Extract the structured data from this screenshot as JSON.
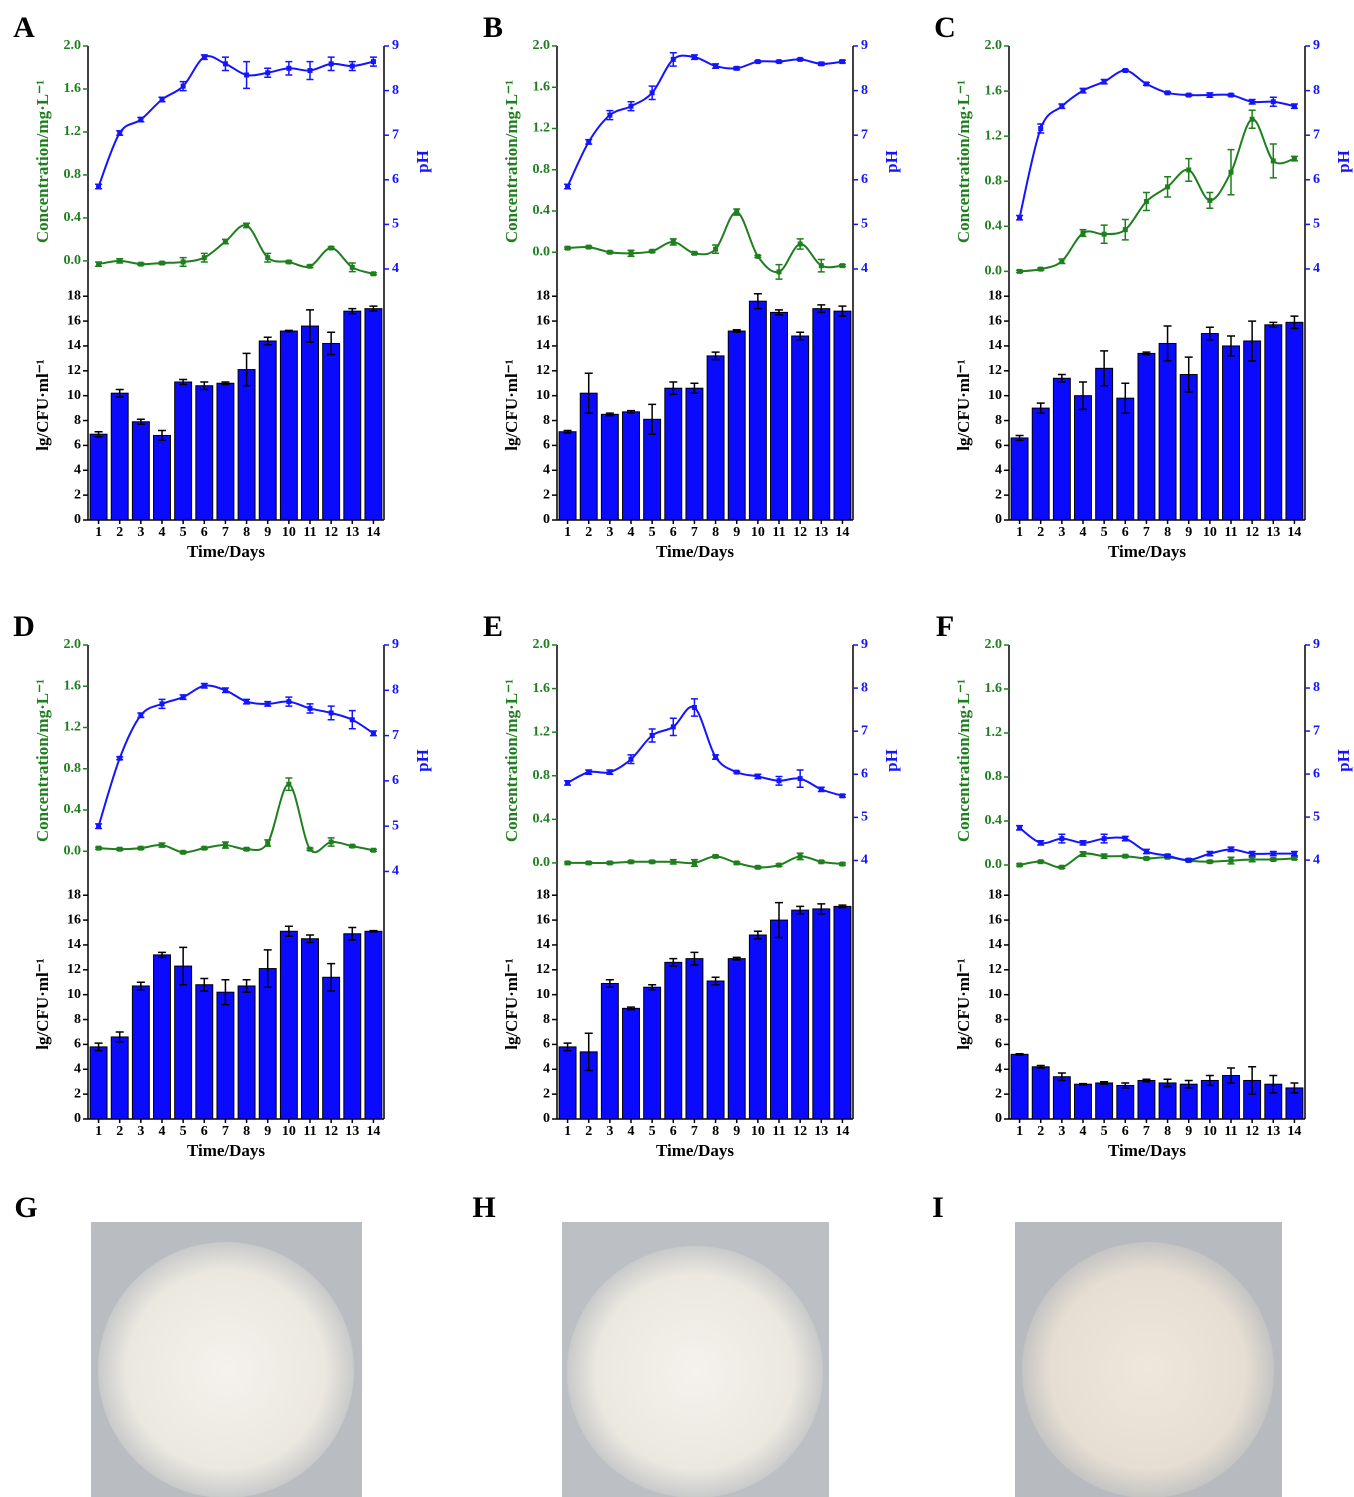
{
  "chart_data": [
    {
      "type": "combo",
      "label": "A",
      "xlabel": "Time/Days",
      "categories": [
        1,
        2,
        3,
        4,
        5,
        6,
        7,
        8,
        9,
        10,
        11,
        12,
        13,
        14
      ],
      "ylabel": "Concentration/mg·L⁻¹",
      "ylim": [
        -0.15,
        2.0
      ],
      "yticks": [
        {
          "value": 0,
          "label": "0.0"
        },
        {
          "value": 0.4,
          "label": "0.4"
        },
        {
          "value": 0.8,
          "label": "0.8"
        },
        {
          "value": 1.2,
          "label": "1.2"
        },
        {
          "value": 1.6,
          "label": "1.6"
        },
        {
          "value": 2,
          "label": "2.0"
        }
      ],
      "y2label": "pH",
      "y2lim": [
        3.82,
        9
      ],
      "y2ticks": [
        4,
        5,
        6,
        7,
        8,
        9
      ],
      "series": [
        {
          "color": "#1f7f1f",
          "values": [
            -0.03,
            0.0,
            -0.03,
            -0.02,
            -0.01,
            0.03,
            0.18,
            0.33,
            0.03,
            -0.01,
            -0.05,
            0.12,
            -0.06,
            -0.12
          ],
          "errors": [
            0.02,
            0.02,
            0.01,
            0.01,
            0.04,
            0.04,
            0.02,
            0.02,
            0.04,
            0.01,
            0.01,
            0.01,
            0.04,
            0.01
          ]
        },
        {
          "color": "#1414ff",
          "axis": "y2",
          "values": [
            5.85,
            7.05,
            7.35,
            7.8,
            8.1,
            8.75,
            8.6,
            8.35,
            8.4,
            8.5,
            8.45,
            8.6,
            8.55,
            8.65
          ],
          "errors": [
            0.05,
            0.05,
            0.05,
            0.05,
            0.1,
            0.05,
            0.15,
            0.3,
            0.1,
            0.15,
            0.2,
            0.15,
            0.1,
            0.1
          ]
        }
      ],
      "bars": {
        "ylabel": "lg/CFU·ml⁻¹",
        "ylim": [
          0,
          18.5
        ],
        "yticks": [
          0,
          2,
          4,
          6,
          8,
          10,
          12,
          14,
          16,
          18
        ],
        "color": "#0a0aff",
        "values": [
          6.9,
          10.2,
          7.9,
          6.8,
          11.1,
          10.8,
          11.0,
          12.1,
          14.4,
          15.2,
          15.6,
          14.2,
          16.8,
          17.0
        ],
        "errors": [
          0.2,
          0.3,
          0.2,
          0.4,
          0.2,
          0.3,
          0.1,
          1.3,
          0.3,
          0.05,
          1.3,
          0.9,
          0.2,
          0.2
        ]
      }
    },
    {
      "type": "combo",
      "label": "B",
      "xlabel": "Time/Days",
      "categories": [
        1,
        2,
        3,
        4,
        5,
        6,
        7,
        8,
        9,
        10,
        11,
        12,
        13,
        14
      ],
      "ylabel": "Concentration/mg·L⁻¹",
      "ylim": [
        -0.24,
        2.0
      ],
      "yticks": [
        {
          "value": 0,
          "label": "0.0"
        },
        {
          "value": 0.4,
          "label": "0.4"
        },
        {
          "value": 0.8,
          "label": "0.8"
        },
        {
          "value": 1.2,
          "label": "1.2"
        },
        {
          "value": 1.6,
          "label": "1.6"
        },
        {
          "value": 2,
          "label": "2.0"
        }
      ],
      "y2label": "pH",
      "y2lim": [
        3.82,
        9
      ],
      "y2ticks": [
        4,
        5,
        6,
        7,
        8,
        9
      ],
      "series": [
        {
          "color": "#1f7f1f",
          "values": [
            0.04,
            0.05,
            0.0,
            -0.01,
            0.01,
            0.1,
            -0.01,
            0.03,
            0.39,
            -0.04,
            -0.19,
            0.08,
            -0.13,
            -0.13
          ],
          "errors": [
            0.01,
            0.01,
            0.01,
            0.03,
            0.01,
            0.03,
            0.01,
            0.04,
            0.03,
            0.01,
            0.07,
            0.05,
            0.06,
            0.01
          ]
        },
        {
          "color": "#1414ff",
          "axis": "y2",
          "values": [
            5.85,
            6.85,
            7.45,
            7.65,
            7.95,
            8.7,
            8.75,
            8.55,
            8.5,
            8.65,
            8.65,
            8.7,
            8.6,
            8.65
          ],
          "errors": [
            0.05,
            0.05,
            0.1,
            0.1,
            0.15,
            0.15,
            0.05,
            0.05,
            0.03,
            0.02,
            0.02,
            0.02,
            0.03,
            0.03
          ]
        }
      ],
      "bars": {
        "ylabel": "lg/CFU·ml⁻¹",
        "ylim": [
          0,
          18.5
        ],
        "yticks": [
          0,
          2,
          4,
          6,
          8,
          10,
          12,
          14,
          16,
          18
        ],
        "color": "#0a0aff",
        "values": [
          7.1,
          10.2,
          8.5,
          8.7,
          8.1,
          10.6,
          10.6,
          13.2,
          15.2,
          17.6,
          16.7,
          14.8,
          17.0,
          16.8
        ],
        "errors": [
          0.1,
          1.6,
          0.1,
          0.1,
          1.2,
          0.5,
          0.4,
          0.3,
          0.1,
          0.6,
          0.2,
          0.3,
          0.3,
          0.4
        ]
      }
    },
    {
      "type": "combo",
      "label": "C",
      "xlabel": "Time/Days",
      "categories": [
        1,
        2,
        3,
        4,
        5,
        6,
        7,
        8,
        9,
        10,
        11,
        12,
        13,
        14
      ],
      "ylabel": "Concentration/mg·L⁻¹",
      "ylim": [
        -0.05,
        2.0
      ],
      "yticks": [
        {
          "value": 0,
          "label": "0.0"
        },
        {
          "value": 0.4,
          "label": "0.4"
        },
        {
          "value": 0.8,
          "label": "0.8"
        },
        {
          "value": 1.2,
          "label": "1.2"
        },
        {
          "value": 1.6,
          "label": "1.6"
        },
        {
          "value": 2,
          "label": "2.0"
        }
      ],
      "y2label": "pH",
      "y2lim": [
        3.82,
        9
      ],
      "y2ticks": [
        4,
        5,
        6,
        7,
        8,
        9
      ],
      "series": [
        {
          "color": "#1f7f1f",
          "values": [
            0.0,
            0.02,
            0.09,
            0.34,
            0.33,
            0.37,
            0.62,
            0.75,
            0.9,
            0.63,
            0.88,
            1.35,
            0.98,
            1.0
          ],
          "errors": [
            0.01,
            0.01,
            0.02,
            0.03,
            0.08,
            0.09,
            0.08,
            0.09,
            0.1,
            0.07,
            0.2,
            0.08,
            0.15,
            0.02
          ]
        },
        {
          "color": "#1414ff",
          "axis": "y2",
          "values": [
            5.15,
            7.15,
            7.65,
            8.0,
            8.2,
            8.45,
            8.15,
            7.95,
            7.9,
            7.9,
            7.9,
            7.75,
            7.75,
            7.65
          ],
          "errors": [
            0.05,
            0.1,
            0.05,
            0.05,
            0.05,
            0.02,
            0.03,
            0.02,
            0.02,
            0.05,
            0.02,
            0.05,
            0.1,
            0.05
          ]
        }
      ],
      "bars": {
        "ylabel": "lg/CFU·ml⁻¹",
        "ylim": [
          0,
          18.5
        ],
        "yticks": [
          0,
          2,
          4,
          6,
          8,
          10,
          12,
          14,
          16,
          18
        ],
        "color": "#0a0aff",
        "values": [
          6.6,
          9.0,
          11.4,
          10.0,
          12.2,
          9.8,
          13.4,
          14.2,
          11.7,
          15.0,
          14.0,
          14.4,
          15.7,
          15.9
        ],
        "errors": [
          0.2,
          0.4,
          0.3,
          1.1,
          1.4,
          1.2,
          0.1,
          1.4,
          1.4,
          0.5,
          0.8,
          1.6,
          0.2,
          0.5
        ]
      }
    },
    {
      "type": "combo",
      "label": "D",
      "xlabel": "Time/Days",
      "categories": [
        1,
        2,
        3,
        4,
        5,
        6,
        7,
        8,
        9,
        10,
        11,
        12,
        13,
        14
      ],
      "ylabel": "Concentration/mg·L⁻¹",
      "ylim": [
        -0.24,
        2.0
      ],
      "yticks": [
        {
          "value": 0,
          "label": "0.0"
        },
        {
          "value": 0.4,
          "label": "0.4"
        },
        {
          "value": 0.8,
          "label": "0.8"
        },
        {
          "value": 1.2,
          "label": "1.2"
        },
        {
          "value": 1.6,
          "label": "1.6"
        },
        {
          "value": 2,
          "label": "2.0"
        }
      ],
      "y2label": "pH",
      "y2lim": [
        3.9,
        9
      ],
      "y2ticks": [
        4,
        5,
        6,
        7,
        8,
        9
      ],
      "series": [
        {
          "color": "#1f7f1f",
          "values": [
            0.03,
            0.02,
            0.03,
            0.06,
            -0.01,
            0.03,
            0.06,
            0.02,
            0.08,
            0.65,
            0.02,
            0.09,
            0.05,
            0.01
          ],
          "errors": [
            0.01,
            0.01,
            0.01,
            0.02,
            0.01,
            0.01,
            0.03,
            0.01,
            0.03,
            0.06,
            0.01,
            0.04,
            0.01,
            0.01
          ]
        },
        {
          "color": "#1414ff",
          "axis": "y2",
          "values": [
            5.0,
            6.5,
            7.45,
            7.7,
            7.85,
            8.1,
            8.0,
            7.75,
            7.7,
            7.75,
            7.6,
            7.5,
            7.35,
            7.05
          ],
          "errors": [
            0.05,
            0.03,
            0.05,
            0.1,
            0.05,
            0.05,
            0.05,
            0.05,
            0.05,
            0.1,
            0.1,
            0.15,
            0.2,
            0.05
          ]
        }
      ],
      "bars": {
        "ylabel": "lg/CFU·ml⁻¹",
        "ylim": [
          0,
          18.5
        ],
        "yticks": [
          0,
          2,
          4,
          6,
          8,
          10,
          12,
          14,
          16,
          18
        ],
        "color": "#0a0aff",
        "values": [
          5.8,
          6.6,
          10.7,
          13.2,
          12.3,
          10.8,
          10.2,
          10.7,
          12.1,
          15.1,
          14.5,
          11.4,
          14.9,
          15.1
        ],
        "errors": [
          0.3,
          0.4,
          0.3,
          0.2,
          1.5,
          0.5,
          1.0,
          0.5,
          1.5,
          0.4,
          0.3,
          1.1,
          0.5,
          0.05
        ]
      }
    },
    {
      "type": "combo",
      "label": "E",
      "xlabel": "Time/Days",
      "categories": [
        1,
        2,
        3,
        4,
        5,
        6,
        7,
        8,
        9,
        10,
        11,
        12,
        13,
        14
      ],
      "ylabel": "Concentration/mg·L⁻¹",
      "ylim": [
        -0.12,
        2.0
      ],
      "yticks": [
        {
          "value": 0,
          "label": "0.0"
        },
        {
          "value": 0.4,
          "label": "0.4"
        },
        {
          "value": 0.8,
          "label": "0.8"
        },
        {
          "value": 1.2,
          "label": "1.2"
        },
        {
          "value": 1.6,
          "label": "1.6"
        },
        {
          "value": 2,
          "label": "2.0"
        }
      ],
      "y2label": "pH",
      "y2lim": [
        3.64,
        9
      ],
      "y2ticks": [
        4,
        5,
        6,
        7,
        8,
        9
      ],
      "series": [
        {
          "color": "#1f7f1f",
          "values": [
            0.0,
            0.0,
            0.0,
            0.01,
            0.01,
            0.01,
            0.0,
            0.06,
            0.0,
            -0.04,
            -0.02,
            0.06,
            0.01,
            -0.01
          ],
          "errors": [
            0.01,
            0.01,
            0.01,
            0.01,
            0.01,
            0.02,
            0.03,
            0.01,
            0.01,
            0.01,
            0.01,
            0.03,
            0.01,
            0.01
          ]
        },
        {
          "color": "#1414ff",
          "axis": "y2",
          "values": [
            5.8,
            6.05,
            6.05,
            6.35,
            6.9,
            7.1,
            7.55,
            6.4,
            6.05,
            5.95,
            5.85,
            5.9,
            5.65,
            5.5
          ],
          "errors": [
            0.05,
            0.05,
            0.05,
            0.1,
            0.15,
            0.2,
            0.2,
            0.05,
            0.02,
            0.05,
            0.1,
            0.2,
            0.05,
            0.03
          ]
        }
      ],
      "bars": {
        "ylabel": "lg/CFU·ml⁻¹",
        "ylim": [
          0,
          18.5
        ],
        "yticks": [
          0,
          2,
          4,
          6,
          8,
          10,
          12,
          14,
          16,
          18
        ],
        "color": "#0a0aff",
        "values": [
          5.8,
          5.4,
          10.9,
          8.9,
          10.6,
          12.6,
          12.9,
          11.1,
          12.9,
          14.8,
          16.0,
          16.8,
          16.9,
          17.1
        ],
        "errors": [
          0.3,
          1.5,
          0.3,
          0.1,
          0.2,
          0.3,
          0.5,
          0.3,
          0.1,
          0.3,
          1.4,
          0.3,
          0.4,
          0.1
        ]
      }
    },
    {
      "type": "combo",
      "label": "F",
      "xlabel": "Time/Days",
      "categories": [
        1,
        2,
        3,
        4,
        5,
        6,
        7,
        8,
        9,
        10,
        11,
        12,
        13,
        14
      ],
      "ylabel": "Concentration/mg·L⁻¹",
      "ylim": [
        -0.1,
        2.0
      ],
      "yticks": [
        {
          "value": 0,
          "label": "0.0"
        },
        {
          "value": 0.4,
          "label": "0.4"
        },
        {
          "value": 0.8,
          "label": "0.8"
        },
        {
          "value": 1.2,
          "label": "1.2"
        },
        {
          "value": 1.6,
          "label": "1.6"
        },
        {
          "value": 2,
          "label": "2.0"
        }
      ],
      "y2label": "pH",
      "y2lim": [
        3.63,
        9
      ],
      "y2ticks": [
        4,
        5,
        6,
        7,
        8,
        9
      ],
      "series": [
        {
          "color": "#1f7f1f",
          "values": [
            0.0,
            0.03,
            -0.02,
            0.1,
            0.08,
            0.08,
            0.06,
            0.07,
            0.04,
            0.03,
            0.04,
            0.05,
            0.05,
            0.06
          ],
          "errors": [
            0.01,
            0.01,
            0.01,
            0.02,
            0.02,
            0.01,
            0.01,
            0.01,
            0.01,
            0.01,
            0.03,
            0.02,
            0.01,
            0.01
          ]
        },
        {
          "color": "#1414ff",
          "axis": "y2",
          "values": [
            4.75,
            4.4,
            4.5,
            4.4,
            4.5,
            4.5,
            4.2,
            4.1,
            4.0,
            4.15,
            4.25,
            4.15,
            4.15,
            4.15
          ],
          "errors": [
            0.05,
            0.05,
            0.1,
            0.05,
            0.1,
            0.05,
            0.05,
            0.03,
            0.03,
            0.05,
            0.05,
            0.05,
            0.05,
            0.05
          ]
        }
      ],
      "bars": {
        "ylabel": "lg/CFU·ml⁻¹",
        "ylim": [
          0,
          18.5
        ],
        "yticks": [
          0,
          2,
          4,
          6,
          8,
          10,
          12,
          14,
          16,
          18
        ],
        "color": "#0a0aff",
        "values": [
          5.2,
          4.2,
          3.4,
          2.8,
          2.9,
          2.7,
          3.1,
          2.9,
          2.8,
          3.1,
          3.5,
          3.1,
          2.8,
          2.5
        ],
        "errors": [
          0.05,
          0.1,
          0.3,
          0.05,
          0.1,
          0.2,
          0.1,
          0.3,
          0.3,
          0.4,
          0.6,
          1.1,
          0.7,
          0.4
        ]
      }
    }
  ],
  "photos": [
    {
      "label": "G"
    },
    {
      "label": "H"
    },
    {
      "label": "I"
    }
  ]
}
